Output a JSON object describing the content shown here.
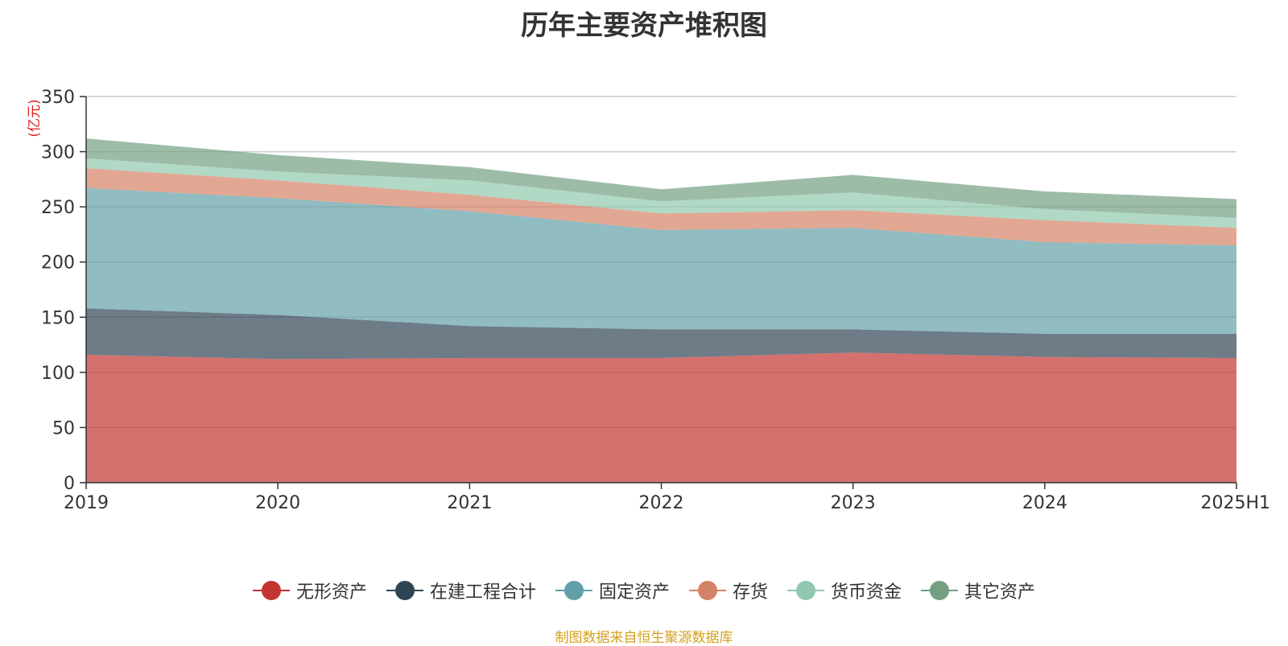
{
  "chart_data": {
    "type": "area",
    "stacked": true,
    "title": "历年主要资产堆积图",
    "ylabel": "(亿元)",
    "xlabel": "",
    "categories": [
      "2019",
      "2020",
      "2021",
      "2022",
      "2023",
      "2024",
      "2025H1"
    ],
    "ylim": [
      0,
      350
    ],
    "yticks": [
      0,
      50,
      100,
      150,
      200,
      250,
      300,
      350
    ],
    "grid": true,
    "legend_position": "bottom",
    "series": [
      {
        "name": "无形资产",
        "color": "#c23531",
        "values": [
          116,
          112,
          113,
          113,
          118,
          114,
          113
        ]
      },
      {
        "name": "在建工程合计",
        "color": "#2f4554",
        "values": [
          42,
          40,
          29,
          26,
          21,
          21,
          22
        ]
      },
      {
        "name": "固定资产",
        "color": "#61a0a8",
        "values": [
          109,
          106,
          104,
          90,
          92,
          83,
          80
        ]
      },
      {
        "name": "存货",
        "color": "#d48265",
        "values": [
          18,
          16,
          15,
          15,
          16,
          20,
          16
        ]
      },
      {
        "name": "货币资金",
        "color": "#91c7ae",
        "values": [
          9,
          8,
          13,
          11,
          16,
          10,
          9
        ]
      },
      {
        "name": "其它资产",
        "color": "#749f83",
        "values": [
          18,
          15,
          12,
          11,
          16,
          16,
          17
        ]
      }
    ]
  },
  "source": "制图数据来自恒生聚源数据库"
}
